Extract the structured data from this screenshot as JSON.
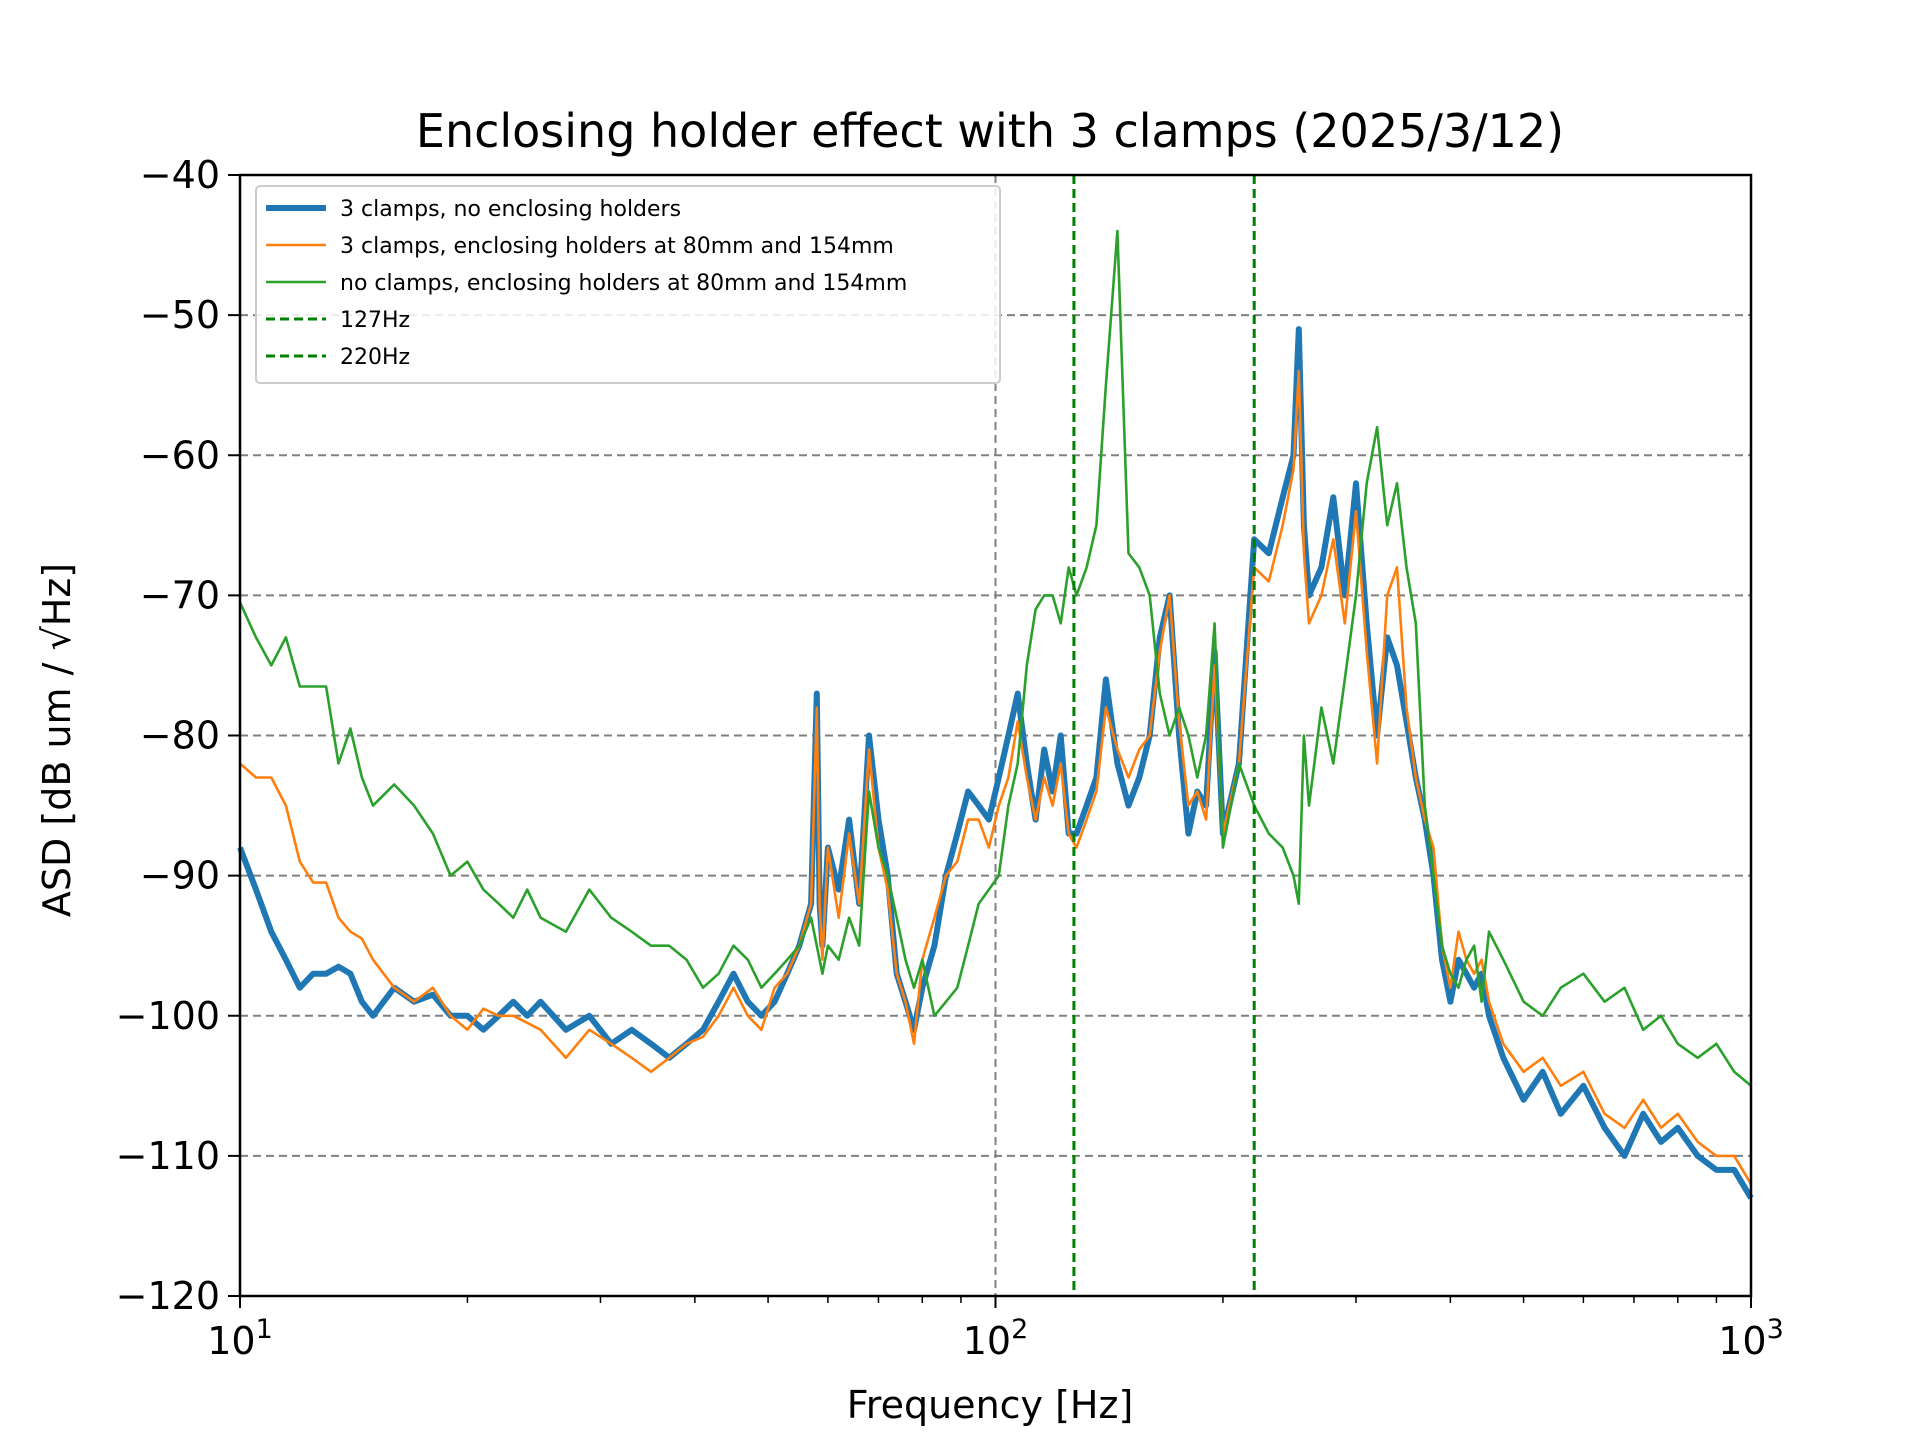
{
  "chart_data": {
    "type": "line",
    "title": "Enclosing holder effect with 3 clamps (2025/3/12)",
    "xlabel": "Frequency [Hz]",
    "ylabel": "ASD [dB um / √Hz]",
    "xscale": "log",
    "xlim": [
      10,
      1000
    ],
    "ylim": [
      -120,
      -40
    ],
    "x_tick_values": [
      10,
      100,
      1000
    ],
    "x_tick_bases": [
      "10",
      "10",
      "10"
    ],
    "x_tick_exponents": [
      "1",
      "2",
      "3"
    ],
    "y_ticks": [
      -120,
      -110,
      -100,
      -90,
      -80,
      -70,
      -60,
      -50,
      -40
    ],
    "y_tick_labels": [
      "−120",
      "−110",
      "−100",
      "−90",
      "−80",
      "−70",
      "−60",
      "−50",
      "−40"
    ],
    "grid": "horizontal dashed at major y ticks; vertical dashed at x = 10^2",
    "legend_position": "upper-left",
    "vlines": [
      {
        "label": "127Hz",
        "x": 127,
        "color": "#008000",
        "style": "dashed"
      },
      {
        "label": "220Hz",
        "x": 220,
        "color": "#008000",
        "style": "dashed"
      }
    ],
    "series": [
      {
        "name": "3 clamps, no enclosing holders",
        "color": "#1f77b4",
        "width": "thick",
        "x": [
          10,
          10.5,
          11,
          11.5,
          12,
          12.5,
          13,
          13.5,
          14,
          14.5,
          15,
          16,
          17,
          18,
          19,
          20,
          21,
          22,
          23,
          24,
          25,
          27,
          29,
          31,
          33,
          35,
          37,
          39,
          41,
          43,
          45,
          47,
          49,
          51,
          53,
          55,
          57,
          58,
          58.5,
          59,
          60,
          62,
          64,
          66,
          68,
          70,
          72,
          74,
          76,
          78,
          80,
          83,
          86,
          89,
          92,
          95,
          98,
          101,
          104,
          107,
          110,
          113,
          116,
          119,
          122,
          125,
          128,
          132,
          136,
          140,
          145,
          150,
          155,
          160,
          165,
          170,
          175,
          180,
          185,
          190,
          195,
          200,
          210,
          220,
          230,
          240,
          248,
          252,
          256,
          260,
          270,
          280,
          290,
          300,
          310,
          320,
          330,
          340,
          350,
          360,
          370,
          380,
          390,
          400,
          410,
          420,
          430,
          440,
          450,
          470,
          500,
          530,
          560,
          600,
          640,
          680,
          720,
          760,
          800,
          850,
          900,
          950,
          1000
        ],
        "y": [
          -88,
          -91,
          -94,
          -96,
          -98,
          -97,
          -97,
          -96.5,
          -97,
          -99,
          -100,
          -98,
          -99,
          -98.5,
          -100,
          -100,
          -101,
          -100,
          -99,
          -100,
          -99,
          -101,
          -100,
          -102,
          -101,
          -102,
          -103,
          -102,
          -101,
          -99,
          -97,
          -99,
          -100,
          -99,
          -97,
          -95,
          -92,
          -77,
          -92,
          -95,
          -88,
          -91,
          -86,
          -92,
          -80,
          -86,
          -90,
          -97,
          -99,
          -101,
          -98,
          -95,
          -90,
          -87,
          -84,
          -85,
          -86,
          -83,
          -80,
          -77,
          -82,
          -86,
          -81,
          -84,
          -80,
          -87,
          -87,
          -85,
          -83,
          -76,
          -82,
          -85,
          -83,
          -80,
          -73,
          -70,
          -80,
          -87,
          -84,
          -85,
          -74,
          -87,
          -82,
          -66,
          -67,
          -63,
          -60,
          -51,
          -65,
          -70,
          -68,
          -63,
          -70,
          -62,
          -72,
          -80,
          -73,
          -75,
          -79,
          -83,
          -86,
          -90,
          -96,
          -99,
          -96,
          -97,
          -98,
          -97,
          -100,
          -103,
          -106,
          -104,
          -107,
          -105,
          -108,
          -110,
          -107,
          -109,
          -108,
          -110,
          -111,
          -111,
          -113
        ]
      },
      {
        "name": "3 clamps, enclosing holders at 80mm and 154mm",
        "color": "#ff7f0e",
        "width": "normal",
        "x": [
          10,
          10.5,
          11,
          11.5,
          12,
          12.5,
          13,
          13.5,
          14,
          14.5,
          15,
          16,
          17,
          18,
          19,
          20,
          21,
          22,
          23,
          24,
          25,
          27,
          29,
          31,
          33,
          35,
          37,
          39,
          41,
          43,
          45,
          47,
          49,
          51,
          53,
          55,
          57,
          58,
          58.5,
          59,
          60,
          62,
          64,
          66,
          68,
          70,
          72,
          74,
          76,
          78,
          80,
          83,
          86,
          89,
          92,
          95,
          98,
          101,
          104,
          107,
          110,
          113,
          116,
          119,
          122,
          125,
          128,
          132,
          136,
          140,
          145,
          150,
          155,
          160,
          165,
          170,
          175,
          180,
          185,
          190,
          195,
          200,
          210,
          220,
          230,
          240,
          248,
          252,
          256,
          260,
          270,
          280,
          290,
          300,
          310,
          320,
          330,
          340,
          350,
          360,
          370,
          380,
          390,
          400,
          410,
          420,
          430,
          440,
          450,
          470,
          500,
          530,
          560,
          600,
          640,
          680,
          720,
          760,
          800,
          850,
          900,
          950,
          1000
        ],
        "y": [
          -82,
          -83,
          -83,
          -85,
          -89,
          -90.5,
          -90.5,
          -93,
          -94,
          -94.5,
          -96,
          -98,
          -99,
          -98,
          -100,
          -101,
          -99.5,
          -100,
          -100,
          -100.5,
          -101,
          -103,
          -101,
          -102,
          -103,
          -104,
          -103,
          -102,
          -101.5,
          -100,
          -98,
          -100,
          -101,
          -98,
          -97,
          -95,
          -92,
          -78,
          -92,
          -96,
          -88,
          -93,
          -87,
          -92,
          -81,
          -88,
          -91,
          -97,
          -99,
          -102,
          -96,
          -93,
          -90,
          -89,
          -86,
          -86,
          -88,
          -85,
          -83,
          -79,
          -83,
          -86,
          -83,
          -85,
          -82,
          -87,
          -88,
          -86,
          -84,
          -78,
          -81,
          -83,
          -81,
          -80,
          -74,
          -70,
          -79,
          -85,
          -84,
          -86,
          -75,
          -87,
          -82,
          -68,
          -69,
          -65,
          -61,
          -54,
          -67,
          -72,
          -70,
          -66,
          -72,
          -64,
          -74,
          -82,
          -70,
          -68,
          -78,
          -83,
          -86,
          -88,
          -95,
          -98,
          -94,
          -96,
          -97,
          -96,
          -99,
          -102,
          -104,
          -103,
          -105,
          -104,
          -107,
          -108,
          -106,
          -108,
          -107,
          -109,
          -110,
          -110,
          -112
        ]
      },
      {
        "name": "no clamps, enclosing holders at 80mm and 154mm",
        "color": "#2ca02c",
        "width": "normal",
        "x": [
          10,
          10.5,
          11,
          11.5,
          12,
          12.5,
          13,
          13.5,
          14,
          14.5,
          15,
          16,
          17,
          18,
          19,
          20,
          21,
          22,
          23,
          24,
          25,
          27,
          29,
          31,
          33,
          35,
          37,
          39,
          41,
          43,
          45,
          47,
          49,
          51,
          53,
          55,
          57,
          58,
          58.5,
          59,
          60,
          62,
          64,
          66,
          68,
          70,
          72,
          74,
          76,
          78,
          80,
          83,
          86,
          89,
          92,
          95,
          98,
          101,
          104,
          107,
          110,
          113,
          116,
          119,
          122,
          125,
          128,
          132,
          136,
          140,
          145,
          150,
          155,
          160,
          165,
          170,
          175,
          180,
          185,
          190,
          195,
          200,
          210,
          220,
          230,
          240,
          248,
          252,
          256,
          260,
          270,
          280,
          290,
          300,
          310,
          320,
          330,
          340,
          350,
          360,
          370,
          380,
          390,
          400,
          410,
          420,
          430,
          440,
          450,
          470,
          500,
          530,
          560,
          600,
          640,
          680,
          720,
          760,
          800,
          850,
          900,
          950,
          1000
        ],
        "y": [
          -70.5,
          -73,
          -75,
          -73,
          -76.5,
          -76.5,
          -76.5,
          -82,
          -79.5,
          -83,
          -85,
          -83.5,
          -85,
          -87,
          -90,
          -89,
          -91,
          -92,
          -93,
          -91,
          -93,
          -94,
          -91,
          -93,
          -94,
          -95,
          -95,
          -96,
          -98,
          -97,
          -95,
          -96,
          -98,
          -97,
          -96,
          -95,
          -93,
          -95,
          -96,
          -97,
          -95,
          -96,
          -93,
          -95,
          -84,
          -88,
          -90,
          -93,
          -96,
          -98,
          -96,
          -100,
          -99,
          -98,
          -95,
          -92,
          -91,
          -90,
          -85,
          -82,
          -75,
          -71,
          -70,
          -70,
          -72,
          -68,
          -70,
          -68,
          -65,
          -55,
          -44,
          -67,
          -68,
          -70,
          -77,
          -80,
          -78,
          -80,
          -83,
          -80,
          -72,
          -88,
          -82,
          -85,
          -87,
          -88,
          -90,
          -92,
          -80,
          -85,
          -78,
          -82,
          -76,
          -70,
          -62,
          -58,
          -65,
          -62,
          -68,
          -72,
          -85,
          -90,
          -95,
          -97,
          -98,
          -96,
          -95,
          -99,
          -94,
          -96,
          -99,
          -100,
          -98,
          -97,
          -99,
          -98,
          -101,
          -100,
          -102,
          -103,
          -102,
          -104,
          -105
        ]
      }
    ]
  }
}
